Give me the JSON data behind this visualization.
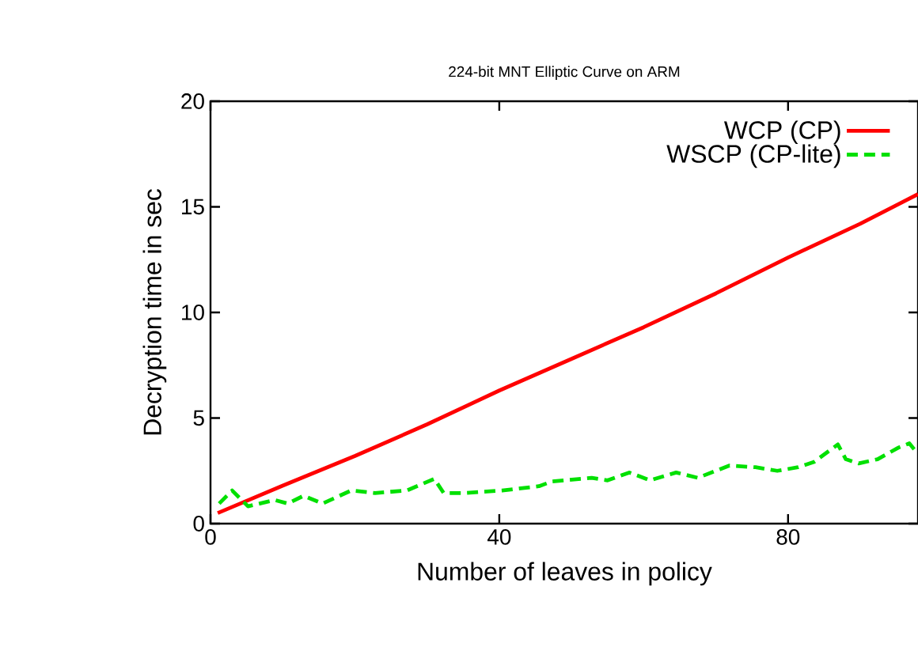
{
  "chart_data": {
    "type": "line",
    "title": "224-bit MNT Elliptic Curve on ARM",
    "xlabel": "Number of leaves in policy",
    "ylabel": "Decryption time in sec",
    "xlim": [
      0,
      98
    ],
    "xticks": [
      0,
      40,
      80
    ],
    "ylim": [
      0,
      20
    ],
    "yticks": [
      0,
      5,
      10,
      15,
      20
    ],
    "legend": "top right",
    "marker": "none",
    "series": [
      {
        "name": "WCP (CP)",
        "color": "#ff0000",
        "line_style": "solid",
        "x": [
          1,
          10,
          20,
          30,
          40,
          50,
          60,
          70,
          80,
          90,
          98
        ],
        "values": [
          0.5,
          1.8,
          3.2,
          4.7,
          6.3,
          7.8,
          9.3,
          10.9,
          12.6,
          14.2,
          15.6
        ]
      },
      {
        "name": "WSCP (CP-lite)",
        "color": "#00e000",
        "line_style": "dashed",
        "x": [
          1.2,
          3.0,
          5.2,
          8.9,
          10.7,
          12.9,
          15.5,
          19.5,
          22.8,
          27.2,
          31.0,
          32.3,
          35.2,
          40.4,
          45.5,
          47.3,
          52.8,
          55.0,
          58.0,
          60.9,
          64.5,
          67.5,
          71.9,
          75.5,
          78.5,
          81.4,
          83.6,
          86.9,
          88.0,
          89.8,
          92.4,
          95.3,
          96.8,
          98.0
        ],
        "values": [
          0.95,
          1.57,
          0.82,
          1.12,
          0.95,
          1.32,
          0.95,
          1.57,
          1.45,
          1.57,
          2.12,
          1.45,
          1.45,
          1.57,
          1.77,
          2.0,
          2.17,
          2.05,
          2.42,
          2.05,
          2.42,
          2.17,
          2.75,
          2.67,
          2.5,
          2.67,
          2.92,
          3.75,
          3.05,
          2.85,
          3.05,
          3.6,
          3.8,
          3.3
        ]
      }
    ]
  }
}
